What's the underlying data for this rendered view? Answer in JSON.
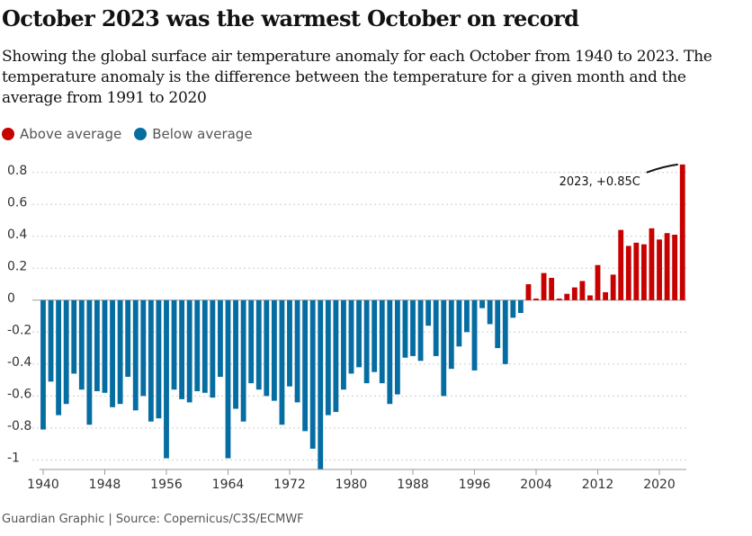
{
  "chart_data": {
    "type": "bar",
    "title": "October 2023 was the warmest October on record",
    "subtitle": "Showing the global surface air temperature anomaly for each October from 1940 to 2023. The temperature anomaly is the difference between the temperature for a given month and the average from 1991 to 2020",
    "source": "Guardian Graphic | Source: Copernicus/C3S/ECMWF",
    "annotation": "2023, +0.85C",
    "x": [
      1940,
      1941,
      1942,
      1943,
      1944,
      1945,
      1946,
      1947,
      1948,
      1949,
      1950,
      1951,
      1952,
      1953,
      1954,
      1955,
      1956,
      1957,
      1958,
      1959,
      1960,
      1961,
      1962,
      1963,
      1964,
      1965,
      1966,
      1967,
      1968,
      1969,
      1970,
      1971,
      1972,
      1973,
      1974,
      1975,
      1976,
      1977,
      1978,
      1979,
      1980,
      1981,
      1982,
      1983,
      1984,
      1985,
      1986,
      1987,
      1988,
      1989,
      1990,
      1991,
      1992,
      1993,
      1994,
      1995,
      1996,
      1997,
      1998,
      1999,
      2000,
      2001,
      2002,
      2003,
      2004,
      2005,
      2006,
      2007,
      2008,
      2009,
      2010,
      2011,
      2012,
      2013,
      2014,
      2015,
      2016,
      2017,
      2018,
      2019,
      2020,
      2021,
      2022,
      2023
    ],
    "series": [
      {
        "name": "Above average",
        "color": "#c70000",
        "values": [
          null,
          null,
          null,
          null,
          null,
          null,
          null,
          null,
          null,
          null,
          null,
          null,
          null,
          null,
          null,
          null,
          null,
          null,
          null,
          null,
          null,
          null,
          null,
          null,
          null,
          null,
          null,
          null,
          null,
          null,
          null,
          null,
          null,
          null,
          null,
          null,
          null,
          null,
          null,
          null,
          null,
          null,
          null,
          null,
          null,
          null,
          null,
          null,
          null,
          null,
          null,
          null,
          null,
          null,
          null,
          null,
          null,
          null,
          null,
          null,
          null,
          null,
          null,
          0.1,
          0.01,
          0.17,
          0.14,
          0.01,
          0.04,
          0.08,
          0.12,
          0.03,
          0.22,
          0.05,
          0.16,
          0.44,
          0.34,
          0.36,
          0.35,
          0.45,
          0.38,
          0.42,
          0.41,
          0.85
        ]
      },
      {
        "name": "Below average",
        "color": "#056da1",
        "values": [
          -0.81,
          -0.51,
          -0.72,
          -0.65,
          -0.46,
          -0.56,
          -0.78,
          -0.57,
          -0.58,
          -0.67,
          -0.65,
          -0.48,
          -0.69,
          -0.6,
          -0.76,
          -0.74,
          -0.99,
          -0.56,
          -0.62,
          -0.64,
          -0.57,
          -0.58,
          -0.61,
          -0.48,
          -0.99,
          -0.68,
          -0.76,
          -0.52,
          -0.56,
          -0.6,
          -0.63,
          -0.78,
          -0.54,
          -0.64,
          -0.82,
          -0.93,
          -1.06,
          -0.72,
          -0.7,
          -0.56,
          -0.46,
          -0.42,
          -0.52,
          -0.45,
          -0.52,
          -0.65,
          -0.59,
          -0.36,
          -0.35,
          -0.38,
          -0.16,
          -0.35,
          -0.6,
          -0.43,
          -0.29,
          -0.2,
          -0.44,
          -0.05,
          -0.15,
          -0.3,
          -0.4,
          -0.11,
          -0.08,
          null,
          null,
          null,
          null,
          null,
          null,
          null,
          null,
          null,
          null,
          null,
          null,
          null,
          null,
          null,
          null,
          null,
          null,
          null,
          null,
          null
        ]
      }
    ],
    "xlim": [
      1939.5,
      2023.5
    ],
    "xticks": [
      1940,
      1948,
      1956,
      1964,
      1972,
      1980,
      1988,
      1996,
      2004,
      2012,
      2020
    ],
    "ylim": [
      -1.06,
      0.9
    ],
    "yticks": [
      0.8,
      0.6,
      0.4,
      0.2,
      0,
      -0.2,
      -0.4,
      -0.6,
      -0.8,
      -1
    ],
    "grid": true
  }
}
